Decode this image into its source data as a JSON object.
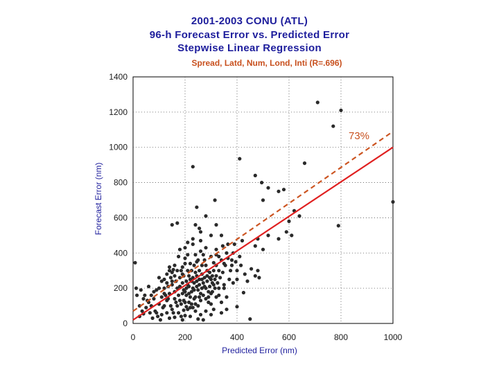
{
  "chart_data": {
    "type": "scatter",
    "title_lines": [
      "2001-2003 CONU (ATL)",
      "96-h Forecast Error vs. Predicted Error",
      "Stepwise Linear Regression"
    ],
    "subtitle": "Spread, Latd, Num, Lond, Inti  (R=.696)",
    "xlabel": "Predicted Error (nm)",
    "ylabel": "Forecast Error (nm)",
    "xlim": [
      0,
      1000
    ],
    "ylim": [
      0,
      1400
    ],
    "xticks": [
      "0",
      "200",
      "400",
      "600",
      "800",
      "1000"
    ],
    "yticks": [
      "0",
      "200",
      "400",
      "600",
      "800",
      "1000",
      "1200",
      "1400"
    ],
    "grid": true,
    "annotation": "73%",
    "colors": {
      "points": "#2a2a2a",
      "fit_line": "#e02020",
      "dashed_line": "#cc5522",
      "axis_label": "#1d1d9c",
      "annotation": "#c8501e"
    },
    "lines": [
      {
        "style": "solid",
        "x": [
          0,
          1000
        ],
        "y": [
          20,
          1000
        ]
      },
      {
        "style": "dashed",
        "x": [
          0,
          1000
        ],
        "y": [
          70,
          1090
        ]
      }
    ],
    "points": [
      [
        710,
        1255
      ],
      [
        800,
        1210
      ],
      [
        770,
        1120
      ],
      [
        1000,
        690
      ],
      [
        790,
        555
      ],
      [
        660,
        910
      ],
      [
        580,
        760
      ],
      [
        560,
        750
      ],
      [
        520,
        770
      ],
      [
        470,
        840
      ],
      [
        495,
        800
      ],
      [
        410,
        935
      ],
      [
        500,
        700
      ],
      [
        620,
        640
      ],
      [
        640,
        610
      ],
      [
        600,
        580
      ],
      [
        590,
        520
      ],
      [
        560,
        480
      ],
      [
        610,
        500
      ],
      [
        520,
        500
      ],
      [
        480,
        480
      ],
      [
        470,
        440
      ],
      [
        500,
        420
      ],
      [
        485,
        260
      ],
      [
        400,
        250
      ],
      [
        400,
        95
      ],
      [
        450,
        25
      ],
      [
        230,
        890
      ],
      [
        315,
        700
      ],
      [
        245,
        660
      ],
      [
        170,
        570
      ],
      [
        150,
        560
      ],
      [
        240,
        560
      ],
      [
        255,
        540
      ],
      [
        260,
        520
      ],
      [
        230,
        480
      ],
      [
        280,
        610
      ],
      [
        320,
        560
      ],
      [
        280,
        430
      ],
      [
        300,
        500
      ],
      [
        340,
        500
      ],
      [
        345,
        440
      ],
      [
        385,
        400
      ],
      [
        365,
        450
      ],
      [
        420,
        470
      ],
      [
        410,
        380
      ],
      [
        380,
        360
      ],
      [
        380,
        330
      ],
      [
        400,
        300
      ],
      [
        385,
        230
      ],
      [
        425,
        175
      ],
      [
        350,
        220
      ],
      [
        370,
        250
      ],
      [
        330,
        300
      ],
      [
        310,
        345
      ],
      [
        320,
        390
      ],
      [
        350,
        340
      ],
      [
        330,
        380
      ],
      [
        8,
        345
      ],
      [
        12,
        200
      ],
      [
        30,
        190
      ],
      [
        45,
        160
      ],
      [
        55,
        130
      ],
      [
        70,
        100
      ],
      [
        85,
        70
      ],
      [
        95,
        40
      ],
      [
        40,
        55
      ],
      [
        25,
        100
      ],
      [
        15,
        160
      ],
      [
        60,
        210
      ],
      [
        80,
        180
      ],
      [
        100,
        200
      ],
      [
        110,
        150
      ],
      [
        120,
        100
      ],
      [
        130,
        60
      ],
      [
        140,
        30
      ],
      [
        150,
        80
      ],
      [
        160,
        140
      ],
      [
        170,
        200
      ],
      [
        180,
        260
      ],
      [
        190,
        320
      ],
      [
        200,
        370
      ],
      [
        210,
        300
      ],
      [
        220,
        250
      ],
      [
        230,
        200
      ],
      [
        240,
        150
      ],
      [
        250,
        100
      ],
      [
        260,
        50
      ],
      [
        270,
        20
      ],
      [
        280,
        70
      ],
      [
        290,
        120
      ],
      [
        300,
        170
      ],
      [
        310,
        220
      ],
      [
        320,
        270
      ],
      [
        330,
        160
      ],
      [
        340,
        120
      ],
      [
        350,
        200
      ],
      [
        360,
        150
      ],
      [
        120,
        250
      ],
      [
        130,
        280
      ],
      [
        140,
        320
      ],
      [
        150,
        290
      ],
      [
        160,
        330
      ],
      [
        175,
        380
      ],
      [
        185,
        300
      ],
      [
        195,
        270
      ],
      [
        205,
        240
      ],
      [
        215,
        210
      ],
      [
        225,
        180
      ],
      [
        235,
        230
      ],
      [
        245,
        270
      ],
      [
        255,
        300
      ],
      [
        265,
        330
      ],
      [
        275,
        360
      ],
      [
        285,
        300
      ],
      [
        295,
        260
      ],
      [
        305,
        230
      ],
      [
        315,
        200
      ],
      [
        170,
        100
      ],
      [
        180,
        130
      ],
      [
        190,
        170
      ],
      [
        200,
        120
      ],
      [
        210,
        80
      ],
      [
        220,
        40
      ],
      [
        230,
        90
      ],
      [
        240,
        110
      ],
      [
        250,
        190
      ],
      [
        260,
        170
      ],
      [
        270,
        230
      ],
      [
        280,
        200
      ],
      [
        290,
        150
      ],
      [
        300,
        110
      ],
      [
        310,
        80
      ],
      [
        320,
        150
      ],
      [
        330,
        200
      ],
      [
        200,
        180
      ],
      [
        210,
        220
      ],
      [
        220,
        150
      ],
      [
        190,
        230
      ],
      [
        180,
        210
      ],
      [
        160,
        180
      ],
      [
        150,
        220
      ],
      [
        140,
        170
      ],
      [
        130,
        130
      ],
      [
        165,
        240
      ],
      [
        175,
        160
      ],
      [
        185,
        110
      ],
      [
        195,
        75
      ],
      [
        205,
        160
      ],
      [
        215,
        120
      ],
      [
        225,
        300
      ],
      [
        235,
        330
      ],
      [
        245,
        350
      ],
      [
        255,
        250
      ],
      [
        265,
        280
      ],
      [
        275,
        260
      ],
      [
        285,
        240
      ],
      [
        295,
        210
      ],
      [
        305,
        180
      ],
      [
        100,
        110
      ],
      [
        90,
        60
      ],
      [
        110,
        50
      ],
      [
        120,
        170
      ],
      [
        135,
        210
      ],
      [
        145,
        260
      ],
      [
        155,
        305
      ],
      [
        160,
        35
      ],
      [
        190,
        20
      ],
      [
        200,
        45
      ],
      [
        250,
        25
      ],
      [
        300,
        50
      ],
      [
        340,
        60
      ],
      [
        360,
        80
      ],
      [
        280,
        140
      ],
      [
        260,
        130
      ],
      [
        240,
        70
      ],
      [
        220,
        90
      ],
      [
        205,
        95
      ],
      [
        195,
        130
      ],
      [
        215,
        270
      ],
      [
        225,
        110
      ],
      [
        235,
        140
      ],
      [
        245,
        210
      ],
      [
        255,
        150
      ],
      [
        265,
        200
      ],
      [
        270,
        160
      ],
      [
        290,
        180
      ],
      [
        300,
        250
      ],
      [
        310,
        300
      ],
      [
        320,
        330
      ],
      [
        240,
        290
      ],
      [
        230,
        260
      ],
      [
        220,
        340
      ],
      [
        210,
        390
      ],
      [
        200,
        340
      ],
      [
        160,
        270
      ],
      [
        150,
        240
      ],
      [
        140,
        300
      ],
      [
        130,
        230
      ],
      [
        120,
        200
      ],
      [
        110,
        240
      ],
      [
        100,
        260
      ],
      [
        90,
        190
      ],
      [
        80,
        140
      ],
      [
        70,
        160
      ],
      [
        60,
        120
      ],
      [
        50,
        90
      ],
      [
        40,
        140
      ],
      [
        35,
        70
      ],
      [
        25,
        40
      ],
      [
        65,
        60
      ],
      [
        75,
        30
      ],
      [
        105,
        20
      ],
      [
        115,
        90
      ],
      [
        125,
        160
      ],
      [
        135,
        140
      ],
      [
        145,
        100
      ],
      [
        155,
        60
      ],
      [
        165,
        120
      ],
      [
        175,
        60
      ],
      [
        185,
        40
      ],
      [
        195,
        190
      ],
      [
        205,
        200
      ],
      [
        215,
        170
      ],
      [
        225,
        240
      ],
      [
        235,
        190
      ],
      [
        245,
        240
      ],
      [
        255,
        220
      ],
      [
        265,
        250
      ],
      [
        275,
        210
      ],
      [
        285,
        270
      ],
      [
        295,
        290
      ],
      [
        305,
        270
      ],
      [
        315,
        250
      ],
      [
        325,
        230
      ],
      [
        335,
        260
      ],
      [
        345,
        290
      ],
      [
        355,
        330
      ],
      [
        365,
        370
      ],
      [
        375,
        300
      ],
      [
        395,
        350
      ],
      [
        415,
        330
      ],
      [
        430,
        280
      ],
      [
        440,
        240
      ],
      [
        455,
        310
      ],
      [
        470,
        270
      ],
      [
        480,
        300
      ],
      [
        180,
        420
      ],
      [
        200,
        430
      ],
      [
        230,
        450
      ],
      [
        260,
        470
      ],
      [
        210,
        460
      ],
      [
        190,
        280
      ],
      [
        170,
        300
      ],
      [
        280,
        330
      ],
      [
        300,
        380
      ],
      [
        320,
        420
      ],
      [
        340,
        360
      ],
      [
        360,
        400
      ],
      [
        390,
        450
      ],
      [
        240,
        390
      ],
      [
        260,
        410
      ],
      [
        250,
        360
      ],
      [
        270,
        390
      ]
    ]
  }
}
